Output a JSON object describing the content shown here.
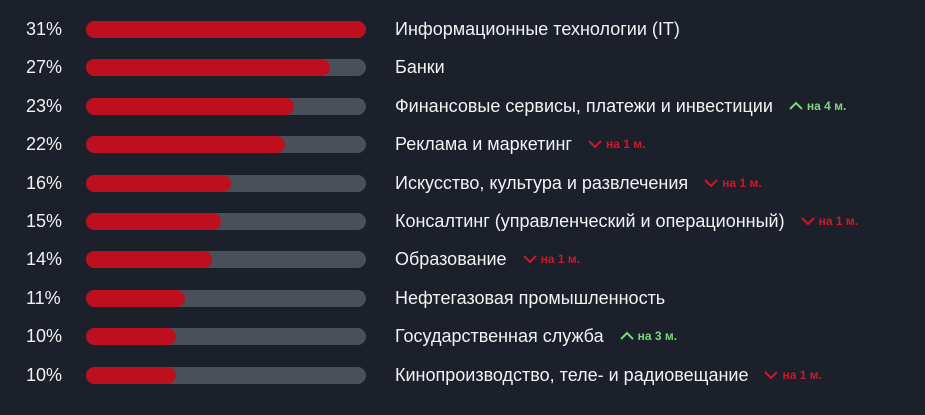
{
  "colors": {
    "bar": "#bd0f1e",
    "track": "#4a505a",
    "up": "#7ed67e",
    "down": "#d0182a",
    "background": "#1b202b"
  },
  "chart_data": {
    "type": "bar",
    "orientation": "horizontal",
    "xlim": [
      0,
      31
    ],
    "grid": false,
    "categories": [
      "Информационные технологии (IT)",
      "Банки",
      "Финансовые сервисы, платежи и инвестиции",
      "Реклама и маркетинг",
      "Искусство, культура и развлечения",
      "Консалтинг (управленческий и операционный)",
      "Образование",
      "Нефтегазовая промышленность",
      "Государственная служба",
      "Кинопроизводство, теле- и радиовещание"
    ],
    "values": [
      31,
      27,
      23,
      22,
      16,
      15,
      14,
      11,
      10,
      10
    ],
    "value_labels": [
      "31%",
      "27%",
      "23%",
      "22%",
      "16%",
      "15%",
      "14%",
      "11%",
      "10%",
      "10%"
    ],
    "changes": [
      null,
      null,
      {
        "direction": "up",
        "icon": "chevron-up-icon",
        "text": "на 4 м."
      },
      {
        "direction": "down",
        "icon": "chevron-down-icon",
        "text": "на 1 м."
      },
      {
        "direction": "down",
        "icon": "chevron-down-icon",
        "text": "на 1 м."
      },
      {
        "direction": "down",
        "icon": "chevron-down-icon",
        "text": "на 1 м."
      },
      {
        "direction": "down",
        "icon": "chevron-down-icon",
        "text": "на 1 м."
      },
      null,
      {
        "direction": "up",
        "icon": "chevron-up-icon",
        "text": "на 3 м."
      },
      {
        "direction": "down",
        "icon": "chevron-down-icon",
        "text": "на 1 м."
      }
    ]
  }
}
